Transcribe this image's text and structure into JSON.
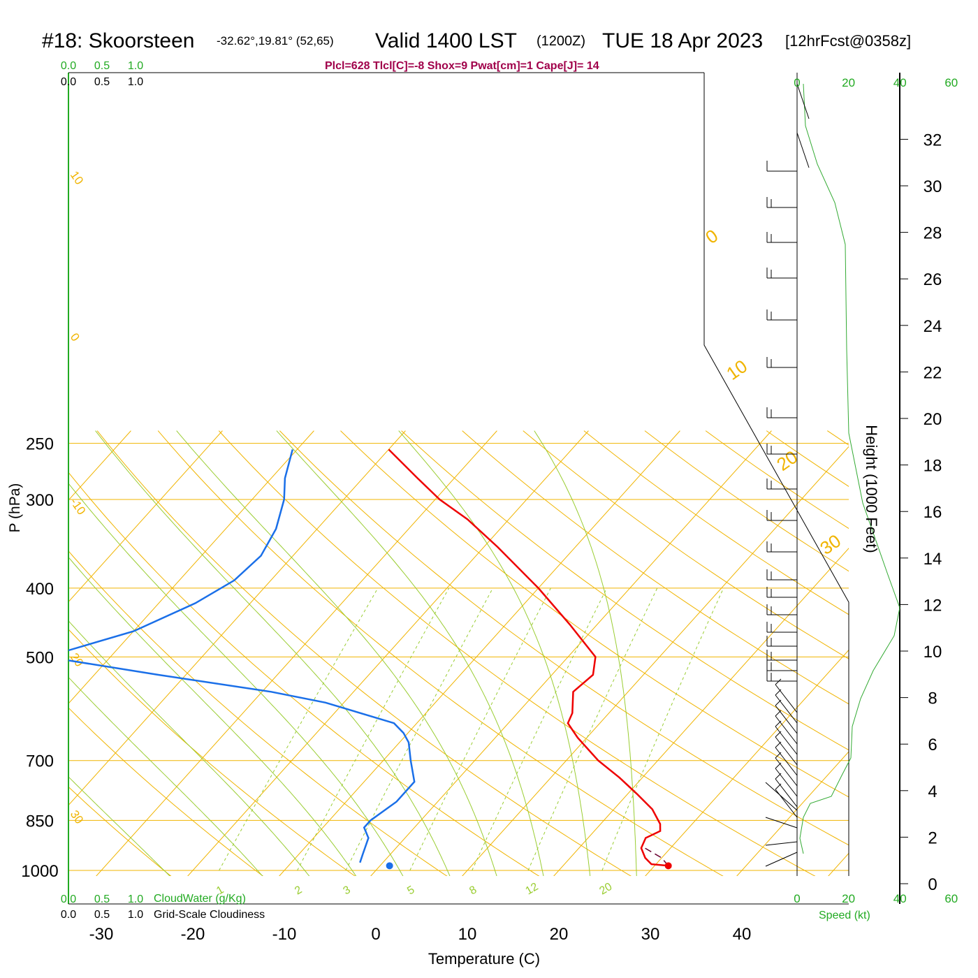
{
  "header": {
    "station": "#18: Skoorsteen",
    "coords": "-32.62°,19.81° (52,65)",
    "valid": "Valid 1400 LST",
    "zulu": "(1200Z)",
    "date": "TUE 18 Apr 2023",
    "forecast": "[12hrFcst@0358z]",
    "params": "Plcl=628 Tlcl[C]=-8 Shox=9 Pwat[cm]=1 Cape[J]= 14"
  },
  "colors": {
    "temperature": "#ee0000",
    "dewpoint": "#1a6fe8",
    "isotherm_adiabat": "#f0b400",
    "moist_adiabat": "#9acd32",
    "mixing_ratio": "#9acd32",
    "cloud_axis": "#22aa22",
    "speed_profile": "#33aa33",
    "title_params": "#a0004a"
  },
  "chart_data": {
    "type": "skew-t",
    "title": "#18: Skoorsteen",
    "xlabel": "Temperature (C)",
    "ylabel": "P (hPa)",
    "x_ticks": [
      -30,
      -20,
      -10,
      0,
      10,
      20,
      30,
      40
    ],
    "pressure_ticks": [
      250,
      300,
      400,
      500,
      700,
      850,
      1000
    ],
    "pressure_range": [
      1000,
      250
    ],
    "height_axis": {
      "label": "Height (1000 Feet)",
      "ticks": [
        0,
        2,
        4,
        6,
        8,
        10,
        12,
        14,
        16,
        18,
        20,
        22,
        24,
        26,
        28,
        30,
        32
      ]
    },
    "speed_axis": {
      "label": "Speed (kt)",
      "ticks": [
        0,
        20,
        40,
        60
      ]
    },
    "cloud_axes": {
      "cloudwater_label": "CloudWater (g/Kg)",
      "cloudiness_label": "Grid-Scale Cloudiness",
      "ticks": [
        "0.0",
        "0.5",
        "1.0"
      ]
    },
    "isotherm_labels": [
      "30",
      "20",
      "10",
      "0",
      "-10",
      "-20",
      "-30"
    ],
    "isotherm_labels_right": [
      "0",
      "10",
      "20",
      "30"
    ],
    "mixing_ratio_labels": [
      "1",
      "2",
      "3",
      "5",
      "8",
      "12",
      "20"
    ],
    "series": [
      {
        "name": "Temperature",
        "points": [
          {
            "p": 985,
            "t": 31.5
          },
          {
            "p": 980,
            "t": 29.5
          },
          {
            "p": 960,
            "t": 28.2
          },
          {
            "p": 930,
            "t": 26.8
          },
          {
            "p": 900,
            "t": 26.3
          },
          {
            "p": 880,
            "t": 27.2
          },
          {
            "p": 860,
            "t": 26.5
          },
          {
            "p": 820,
            "t": 24.2
          },
          {
            "p": 780,
            "t": 21.0
          },
          {
            "p": 740,
            "t": 17.5
          },
          {
            "p": 700,
            "t": 13.5
          },
          {
            "p": 650,
            "t": 9.0
          },
          {
            "p": 620,
            "t": 6.5
          },
          {
            "p": 600,
            "t": 6.0
          },
          {
            "p": 560,
            "t": 4.0
          },
          {
            "p": 530,
            "t": 4.5
          },
          {
            "p": 500,
            "t": 3.0
          },
          {
            "p": 450,
            "t": -3.0
          },
          {
            "p": 400,
            "t": -10.0
          },
          {
            "p": 350,
            "t": -18.5
          },
          {
            "p": 320,
            "t": -24.5
          },
          {
            "p": 300,
            "t": -29.5
          },
          {
            "p": 280,
            "t": -34.0
          },
          {
            "p": 255,
            "t": -40.0
          }
        ]
      },
      {
        "name": "Dewpoint",
        "points": [
          {
            "p": 975,
            "t": -2.5
          },
          {
            "p": 950,
            "t": -3.0
          },
          {
            "p": 900,
            "t": -4.0
          },
          {
            "p": 870,
            "t": -5.5
          },
          {
            "p": 850,
            "t": -5.5
          },
          {
            "p": 800,
            "t": -4.5
          },
          {
            "p": 750,
            "t": -4.5
          },
          {
            "p": 700,
            "t": -7.0
          },
          {
            "p": 660,
            "t": -9.0
          },
          {
            "p": 640,
            "t": -10.5
          },
          {
            "p": 620,
            "t": -12.5
          },
          {
            "p": 580,
            "t": -22.0
          },
          {
            "p": 560,
            "t": -29.0
          },
          {
            "p": 530,
            "t": -43.0
          },
          {
            "p": 500,
            "t": -57.0
          },
          {
            "p": 460,
            "t": -50.0
          },
          {
            "p": 420,
            "t": -46.0
          },
          {
            "p": 390,
            "t": -44.0
          },
          {
            "p": 360,
            "t": -43.5
          },
          {
            "p": 330,
            "t": -44.5
          },
          {
            "p": 300,
            "t": -46.5
          },
          {
            "p": 280,
            "t": -48.5
          },
          {
            "p": 255,
            "t": -50.5
          }
        ]
      },
      {
        "name": "Parcel",
        "points": [
          {
            "p": 985,
            "t": 31.5
          },
          {
            "p": 960,
            "t": 30.0
          },
          {
            "p": 930,
            "t": 27.2
          }
        ]
      }
    ],
    "surface": {
      "t": 31.5,
      "td": 1.5
    }
  }
}
